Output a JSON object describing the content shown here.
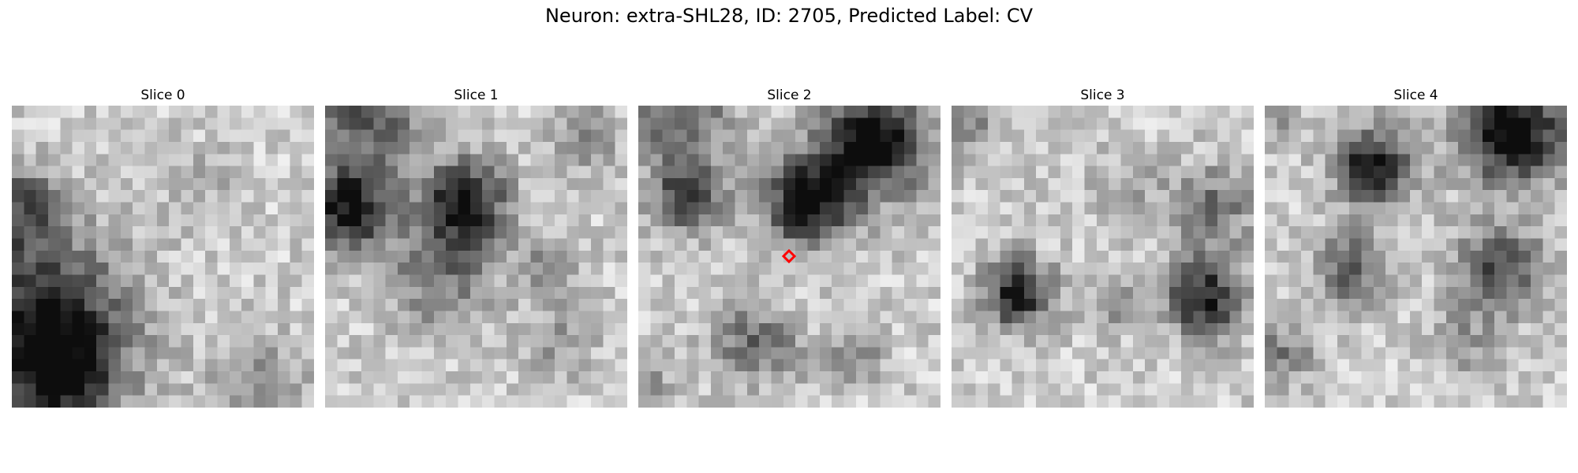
{
  "figure": {
    "title": "Neuron: extra-SHL28, ID: 2705, Predicted Label: CV"
  },
  "slices": [
    {
      "label": "Slice 0"
    },
    {
      "label": "Slice 1"
    },
    {
      "label": "Slice 2"
    },
    {
      "label": "Slice 3"
    },
    {
      "label": "Slice 4"
    }
  ],
  "marker": {
    "slice_index": 2,
    "shape": "diamond",
    "color": "#ff0000"
  },
  "colors": {
    "background": "#ffffff",
    "colormap": "grayscale"
  }
}
